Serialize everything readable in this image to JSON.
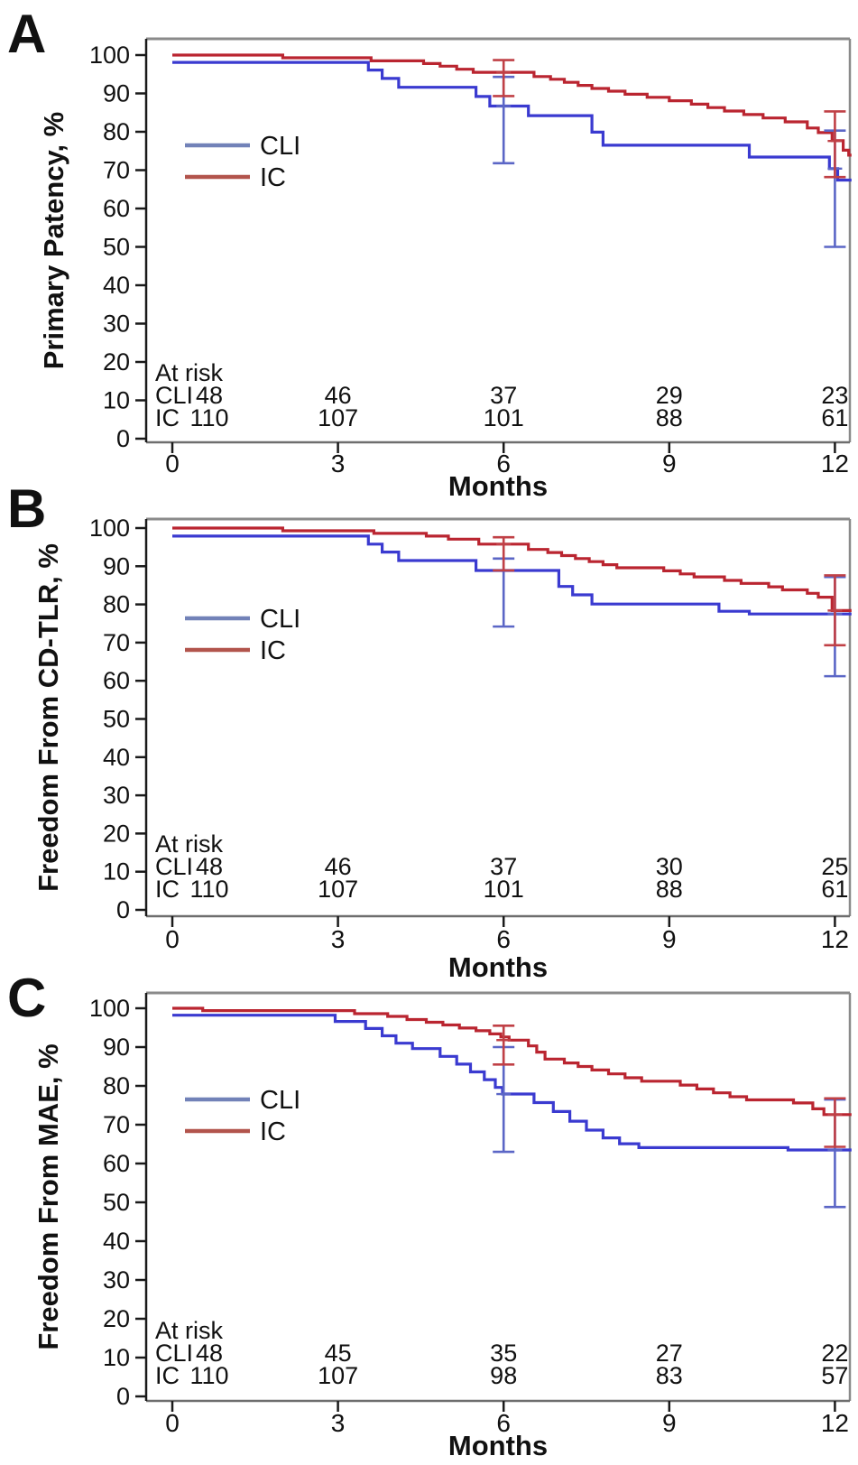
{
  "figure": {
    "xlabel": "Months",
    "at_risk_title": "At risk",
    "colors": {
      "cli_curve": "#3a3ad0",
      "ic_curve": "#ba2530",
      "cli_bar": "#5b66c6",
      "ic_bar": "#c04046",
      "cli_legend": "#7282b8",
      "ic_legend": "#b2544c",
      "axis_dark": "#1a1a1a",
      "frame_gray": "#8a8a8a"
    }
  },
  "chart_data": [
    {
      "type": "line",
      "panel_label": "A",
      "title": "",
      "ylabel": "Primary Patency, %",
      "xlabel": "Months",
      "x_ticks": [
        0,
        3,
        6,
        9,
        12
      ],
      "y_ticks": [
        0,
        10,
        20,
        30,
        40,
        50,
        60,
        70,
        80,
        90,
        100
      ],
      "ylim": [
        0,
        100
      ],
      "xlim": [
        0,
        12.3
      ],
      "grid": false,
      "legend_position": "upper-left-inside",
      "series": [
        {
          "name": "CLI",
          "steps": [
            [
              0,
              98.1
            ],
            [
              3.55,
              96.1
            ],
            [
              3.8,
              93.9
            ],
            [
              4.1,
              91.6
            ],
            [
              5.5,
              89.2
            ],
            [
              5.75,
              86.7
            ],
            [
              6.45,
              84.2
            ],
            [
              7.6,
              79.9
            ],
            [
              7.8,
              76.5
            ],
            [
              10.45,
              73.4
            ],
            [
              11.9,
              70.4
            ],
            [
              12.05,
              67.4
            ],
            [
              12.3,
              67.4
            ]
          ]
        },
        {
          "name": "IC",
          "steps": [
            [
              0,
              100
            ],
            [
              2.0,
              99.3
            ],
            [
              3.6,
              98.5
            ],
            [
              4.55,
              97.8
            ],
            [
              4.85,
              97.1
            ],
            [
              5.15,
              96.3
            ],
            [
              5.45,
              95.5
            ],
            [
              6.55,
              94.4
            ],
            [
              6.85,
              93.7
            ],
            [
              7.1,
              92.9
            ],
            [
              7.35,
              92.1
            ],
            [
              7.6,
              91.3
            ],
            [
              7.9,
              90.6
            ],
            [
              8.2,
              89.8
            ],
            [
              8.6,
              89.0
            ],
            [
              9.0,
              88.1
            ],
            [
              9.4,
              87.2
            ],
            [
              9.7,
              86.3
            ],
            [
              10.0,
              85.4
            ],
            [
              10.35,
              84.5
            ],
            [
              10.7,
              83.6
            ],
            [
              11.1,
              82.6
            ],
            [
              11.5,
              81.0
            ],
            [
              11.7,
              79.8
            ],
            [
              11.95,
              77.7
            ],
            [
              12.15,
              75.2
            ],
            [
              12.25,
              73.9
            ],
            [
              12.3,
              73.9
            ]
          ]
        }
      ],
      "error_bars": [
        {
          "series": "CLI",
          "x": 6,
          "low": 71.8,
          "high": 94.3,
          "mid": 86.7
        },
        {
          "series": "IC",
          "x": 6,
          "low": 89.3,
          "high": 98.7,
          "mid": 95.5
        },
        {
          "series": "CLI",
          "x": 12,
          "low": 50.0,
          "high": 80.3,
          "mid": 70.4
        },
        {
          "series": "IC",
          "x": 12,
          "low": 68.2,
          "high": 85.3,
          "mid": 77.6
        }
      ],
      "at_risk": {
        "title": "At risk",
        "rows": [
          {
            "name": "CLI",
            "values": [
              "48",
              "46",
              "37",
              "29",
              "23"
            ]
          },
          {
            "name": "IC",
            "values": [
              "110",
              "107",
              "101",
              "88",
              "61"
            ]
          }
        ]
      }
    },
    {
      "type": "line",
      "panel_label": "B",
      "title": "",
      "ylabel": "Freedom From CD-TLR, %",
      "xlabel": "Months",
      "x_ticks": [
        0,
        3,
        6,
        9,
        12
      ],
      "y_ticks": [
        0,
        10,
        20,
        30,
        40,
        50,
        60,
        70,
        80,
        90,
        100
      ],
      "ylim": [
        0,
        100
      ],
      "xlim": [
        0,
        12.3
      ],
      "grid": false,
      "legend_position": "upper-left-inside",
      "series": [
        {
          "name": "CLI",
          "steps": [
            [
              0,
              97.9
            ],
            [
              3.55,
              95.8
            ],
            [
              3.8,
              93.7
            ],
            [
              4.1,
              91.5
            ],
            [
              5.5,
              88.9
            ],
            [
              7.0,
              84.7
            ],
            [
              7.25,
              82.5
            ],
            [
              7.6,
              80.1
            ],
            [
              9.9,
              78.2
            ],
            [
              10.45,
              77.5
            ],
            [
              12.3,
              77.5
            ]
          ]
        },
        {
          "name": "IC",
          "steps": [
            [
              0,
              100
            ],
            [
              2.0,
              99.3
            ],
            [
              3.65,
              98.6
            ],
            [
              4.6,
              97.9
            ],
            [
              5.0,
              97.1
            ],
            [
              5.55,
              95.8
            ],
            [
              6.45,
              94.4
            ],
            [
              6.8,
              93.6
            ],
            [
              7.05,
              92.8
            ],
            [
              7.3,
              92.0
            ],
            [
              7.55,
              91.2
            ],
            [
              7.8,
              90.4
            ],
            [
              8.05,
              89.6
            ],
            [
              8.9,
              88.8
            ],
            [
              9.2,
              88.0
            ],
            [
              9.45,
              87.2
            ],
            [
              10.0,
              86.3
            ],
            [
              10.3,
              85.5
            ],
            [
              10.8,
              84.6
            ],
            [
              11.05,
              83.8
            ],
            [
              11.5,
              82.9
            ],
            [
              11.7,
              81.9
            ],
            [
              11.95,
              78.4
            ],
            [
              12.3,
              78.4
            ]
          ]
        }
      ],
      "error_bars": [
        {
          "series": "CLI",
          "x": 6,
          "low": 74.2,
          "high": 92.0,
          "mid": 88.9
        },
        {
          "series": "IC",
          "x": 6,
          "low": 88.9,
          "high": 97.6,
          "mid": 95.8
        },
        {
          "series": "CLI",
          "x": 12,
          "low": 61.2,
          "high": 87.2,
          "mid": 77.5
        },
        {
          "series": "IC",
          "x": 12,
          "low": 69.3,
          "high": 87.6,
          "mid": 78.4
        }
      ],
      "at_risk": {
        "title": "At risk",
        "rows": [
          {
            "name": "CLI",
            "values": [
              "48",
              "46",
              "37",
              "30",
              "25"
            ]
          },
          {
            "name": "IC",
            "values": [
              "110",
              "107",
              "101",
              "88",
              "61"
            ]
          }
        ]
      }
    },
    {
      "type": "line",
      "panel_label": "C",
      "title": "",
      "ylabel": "Freedom From MAE, %",
      "xlabel": "Months",
      "x_ticks": [
        0,
        3,
        6,
        9,
        12
      ],
      "y_ticks": [
        0,
        10,
        20,
        30,
        40,
        50,
        60,
        70,
        80,
        90,
        100
      ],
      "ylim": [
        0,
        100
      ],
      "xlim": [
        0,
        12.3
      ],
      "grid": false,
      "legend_position": "upper-left-inside",
      "series": [
        {
          "name": "CLI",
          "steps": [
            [
              0,
              98.2
            ],
            [
              2.95,
              96.6
            ],
            [
              3.5,
              94.8
            ],
            [
              3.8,
              92.9
            ],
            [
              4.05,
              91.0
            ],
            [
              4.35,
              89.6
            ],
            [
              4.85,
              87.6
            ],
            [
              5.15,
              85.6
            ],
            [
              5.4,
              83.6
            ],
            [
              5.65,
              81.6
            ],
            [
              5.85,
              79.6
            ],
            [
              5.98,
              77.9
            ],
            [
              6.55,
              75.7
            ],
            [
              6.9,
              73.4
            ],
            [
              7.2,
              70.9
            ],
            [
              7.5,
              68.6
            ],
            [
              7.8,
              66.6
            ],
            [
              8.1,
              65.1
            ],
            [
              8.45,
              64.1
            ],
            [
              11.15,
              63.5
            ],
            [
              12.3,
              63.5
            ]
          ]
        },
        {
          "name": "IC",
          "steps": [
            [
              0,
              100
            ],
            [
              0.55,
              99.4
            ],
            [
              3.3,
              98.6
            ],
            [
              3.9,
              97.9
            ],
            [
              4.25,
              97.1
            ],
            [
              4.6,
              96.4
            ],
            [
              4.9,
              95.7
            ],
            [
              5.2,
              94.9
            ],
            [
              5.5,
              94.2
            ],
            [
              5.75,
              93.4
            ],
            [
              5.95,
              92.6
            ],
            [
              6.1,
              91.8
            ],
            [
              6.45,
              90.3
            ],
            [
              6.6,
              88.7
            ],
            [
              6.75,
              86.9
            ],
            [
              7.1,
              85.9
            ],
            [
              7.35,
              85.0
            ],
            [
              7.6,
              84.1
            ],
            [
              7.9,
              83.1
            ],
            [
              8.2,
              82.1
            ],
            [
              8.5,
              81.2
            ],
            [
              9.2,
              80.2
            ],
            [
              9.5,
              79.2
            ],
            [
              9.8,
              78.2
            ],
            [
              10.1,
              77.2
            ],
            [
              10.4,
              76.4
            ],
            [
              11.25,
              75.6
            ],
            [
              11.6,
              74.1
            ],
            [
              11.8,
              72.6
            ],
            [
              12.3,
              72.6
            ]
          ]
        }
      ],
      "error_bars": [
        {
          "series": "CLI",
          "x": 6,
          "low": 63.0,
          "high": 90.0,
          "mid": 77.9
        },
        {
          "series": "IC",
          "x": 6,
          "low": 85.5,
          "high": 95.5,
          "mid": 91.8
        },
        {
          "series": "CLI",
          "x": 12,
          "low": 48.8,
          "high": 76.5,
          "mid": 63.5
        },
        {
          "series": "IC",
          "x": 12,
          "low": 64.3,
          "high": 76.8,
          "mid": 72.6
        }
      ],
      "at_risk": {
        "title": "At risk",
        "rows": [
          {
            "name": "CLI",
            "values": [
              "48",
              "45",
              "35",
              "27",
              "22"
            ]
          },
          {
            "name": "IC",
            "values": [
              "110",
              "107",
              "98",
              "83",
              "57"
            ]
          }
        ]
      }
    }
  ]
}
